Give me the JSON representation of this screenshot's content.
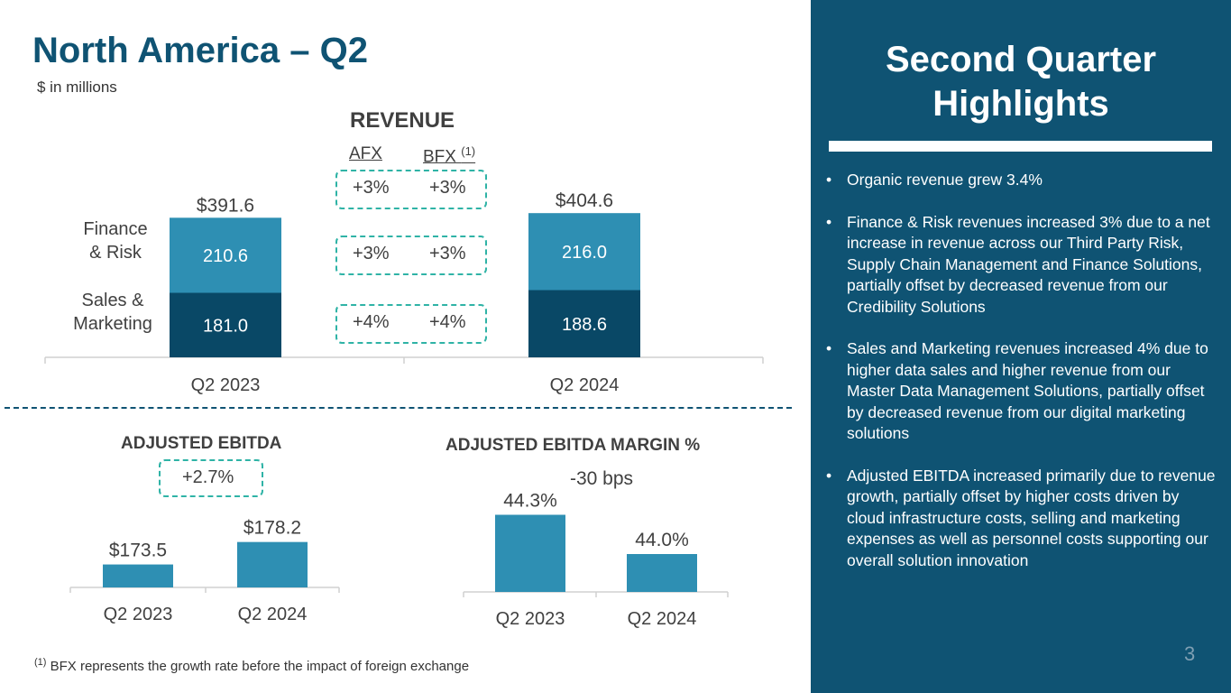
{
  "header": {
    "title": "North America – Q2",
    "units": "$ in millions"
  },
  "revenue": {
    "title": "REVENUE",
    "columns": {
      "afx": "AFX",
      "bfx": "BFX",
      "bfx_note": "(1)"
    },
    "rows": [
      {
        "label": "",
        "afx": "+3%",
        "bfx": "+3%"
      },
      {
        "label": "Finance & Risk",
        "afx": "+3%",
        "bfx": "+3%"
      },
      {
        "label": "Sales & Marketing",
        "afx": "+4%",
        "bfx": "+4%"
      }
    ],
    "segment_labels": {
      "finance": "Finance\n& Risk",
      "sales": "Sales &\nMarketing"
    }
  },
  "ebitda": {
    "title": "ADJUSTED EBITDA",
    "change": "+2.7%"
  },
  "margin": {
    "title": "ADJUSTED EBITDA MARGIN %",
    "change": "-30 bps"
  },
  "footnote": {
    "marker": "(1)",
    "text": "BFX represents the growth rate before the impact of foreign exchange"
  },
  "panel": {
    "title": "Second Quarter Highlights",
    "bullets": [
      "Organic revenue grew 3.4%",
      "Finance & Risk revenues increased 3% due to a net increase in revenue across our Third Party Risk, Supply Chain Management and Finance Solutions, partially offset by decreased revenue from our Credibility Solutions",
      "Sales and Marketing revenues increased 4% due to higher data sales and higher revenue from our Master Data Management Solutions, partially offset by decreased revenue from our digital marketing solutions",
      "Adjusted EBITDA increased primarily due to revenue growth, partially offset by higher costs driven by cloud infrastructure costs, selling and marketing expenses as well as personnel costs supporting our overall solution innovation"
    ]
  },
  "page_number": "3",
  "colors": {
    "navy": "#0f5373",
    "teal": "#2e8fb3",
    "dark": "#094866",
    "accent": "#2fb3a6"
  },
  "chart_data": [
    {
      "type": "bar",
      "title": "REVENUE",
      "stacked": true,
      "categories": [
        "Q2 2023",
        "Q2 2024"
      ],
      "series": [
        {
          "name": "Sales & Marketing",
          "values": [
            181.0,
            188.6
          ],
          "labels": [
            "181.0",
            "188.6"
          ]
        },
        {
          "name": "Finance & Risk",
          "values": [
            210.6,
            216.0
          ],
          "labels": [
            "210.6",
            "216.0"
          ]
        }
      ],
      "totals": [
        391.6,
        404.6
      ],
      "total_labels": [
        "$391.6",
        "$404.6"
      ],
      "ylim": [
        0,
        410
      ]
    },
    {
      "type": "bar",
      "title": "ADJUSTED EBITDA",
      "categories": [
        "Q2 2023",
        "Q2 2024"
      ],
      "values": [
        173.5,
        178.2
      ],
      "labels": [
        "$173.5",
        "$178.2"
      ]
    },
    {
      "type": "bar",
      "title": "ADJUSTED EBITDA MARGIN %",
      "categories": [
        "Q2 2023",
        "Q2 2024"
      ],
      "values": [
        44.3,
        44.0
      ],
      "labels": [
        "44.3%",
        "44.0%"
      ]
    }
  ]
}
